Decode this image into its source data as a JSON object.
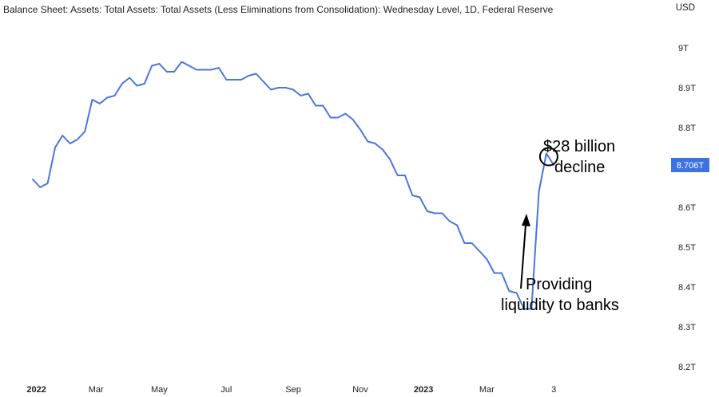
{
  "chart_data": {
    "type": "line",
    "title": "Balance Sheet: Assets: Total Assets: Total Assets (Less Eliminations from Consolidation): Wednesday Level, 1D, Federal Reserve",
    "unit_label": "USD",
    "y_ticks": [
      "9T",
      "8.9T",
      "8.8T",
      "8.6T",
      "8.5T",
      "8.4T",
      "8.3T",
      "8.2T"
    ],
    "y_tick_values": [
      9.0,
      8.9,
      8.8,
      8.6,
      8.5,
      8.4,
      8.3,
      8.2
    ],
    "ylim": [
      8.18,
      9.08
    ],
    "x_ticks": [
      "2022",
      "Mar",
      "May",
      "Jul",
      "Sep",
      "Nov",
      "2023",
      "Mar",
      "3"
    ],
    "x_tick_positions": [
      0.5,
      8.5,
      17.0,
      26.0,
      35.0,
      44.0,
      52.5,
      61.0,
      70.0
    ],
    "x_range": [
      -4.4,
      85
    ],
    "last_value_label": "8.706T",
    "last_value": 8.706,
    "colors": {
      "line": "#4a76dc",
      "badge": "#3d73e0",
      "text": "#1f1f1f",
      "annotation": "#000000"
    },
    "annotations": {
      "decline_line1": "$28 billion",
      "decline_line2": "decline",
      "liquidity_line1": "Providing",
      "liquidity_line2": "liquidity to banks"
    },
    "series": [
      {
        "values": [
          8.67,
          8.65,
          8.66,
          8.75,
          8.78,
          8.76,
          8.77,
          8.79,
          8.87,
          8.86,
          8.875,
          8.88,
          8.91,
          8.925,
          8.905,
          8.91,
          8.955,
          8.96,
          8.94,
          8.94,
          8.965,
          8.955,
          8.945,
          8.945,
          8.945,
          8.95,
          8.92,
          8.92,
          8.92,
          8.93,
          8.935,
          8.915,
          8.895,
          8.9,
          8.9,
          8.895,
          8.88,
          8.885,
          8.855,
          8.855,
          8.825,
          8.825,
          8.835,
          8.82,
          8.795,
          8.765,
          8.76,
          8.745,
          8.72,
          8.68,
          8.68,
          8.63,
          8.625,
          8.59,
          8.585,
          8.585,
          8.565,
          8.555,
          8.51,
          8.51,
          8.49,
          8.47,
          8.435,
          8.435,
          8.39,
          8.385,
          8.345,
          8.345,
          8.64,
          8.735,
          8.706
        ]
      }
    ]
  }
}
